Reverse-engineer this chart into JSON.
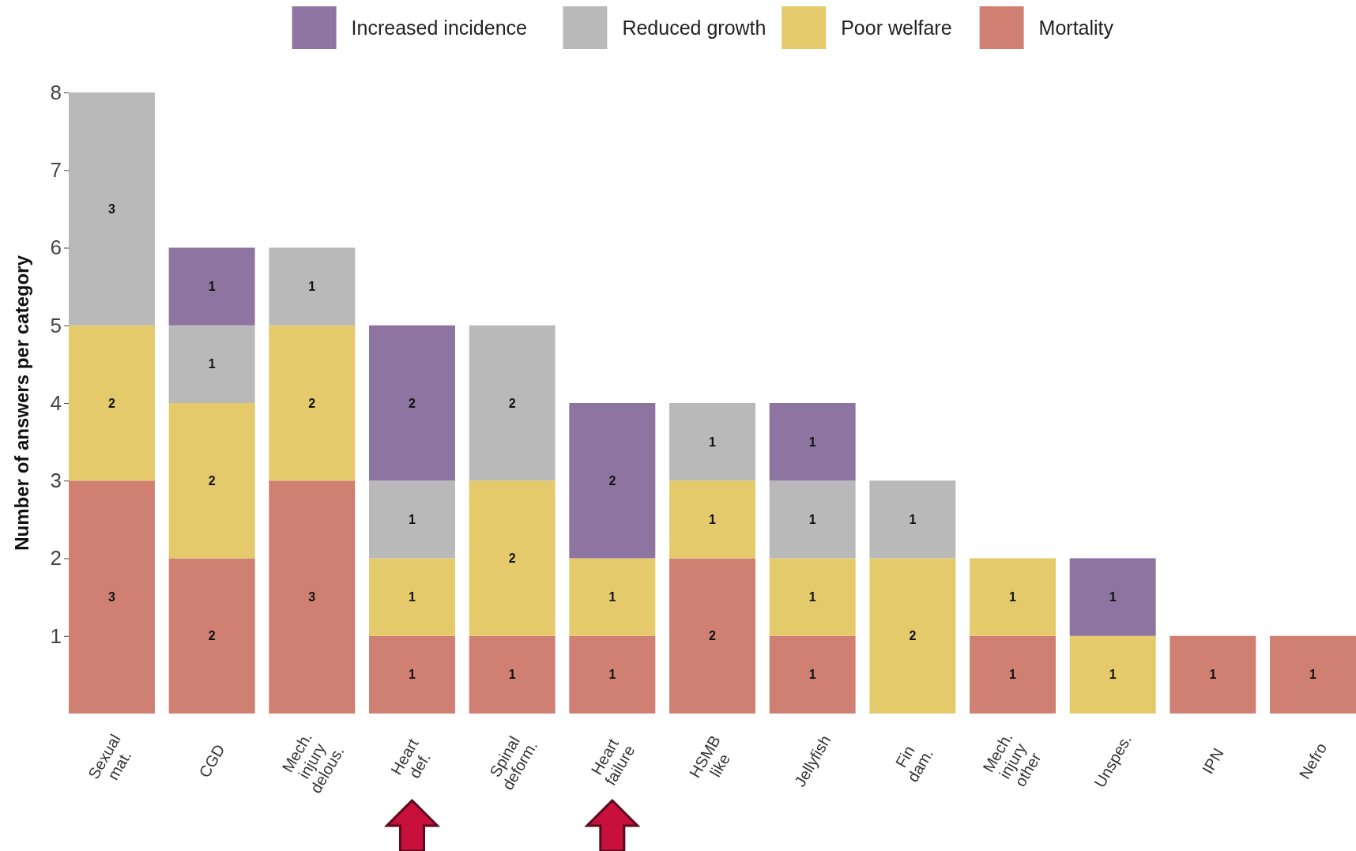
{
  "chart_data": {
    "type": "bar",
    "stacked": true,
    "ylabel": "Number of answers per category",
    "categories": [
      "Sexual\nmat.",
      "CGD",
      "Mech.\ninjury\ndelous.",
      "Heart\ndef.",
      "Spinal\ndeform.",
      "Heart\nfailure",
      "HSMB\nlike",
      "Jellyfish",
      "Fin\ndam.",
      "Mech.\ninjury\nother",
      "Unspes.",
      "IPN",
      "Nefro"
    ],
    "series": [
      {
        "name": "Mortality",
        "color": "#d08073",
        "values": [
          3,
          2,
          3,
          1,
          1,
          1,
          2,
          1,
          null,
          1,
          null,
          1,
          1
        ]
      },
      {
        "name": "Poor welfare",
        "color": "#e4ca6a",
        "values": [
          2,
          2,
          2,
          1,
          2,
          1,
          1,
          1,
          2,
          1,
          1,
          null,
          null
        ]
      },
      {
        "name": "Reduced growth",
        "color": "#b9b9b9",
        "values": [
          3,
          1,
          1,
          1,
          2,
          null,
          1,
          1,
          1,
          null,
          null,
          null,
          null
        ]
      },
      {
        "name": "Increased incidence",
        "color": "#8e74a0",
        "values": [
          null,
          1,
          null,
          2,
          null,
          2,
          null,
          1,
          null,
          null,
          1,
          null,
          null
        ]
      }
    ],
    "ylim": [
      0,
      8
    ],
    "yticks": [
      1,
      2,
      3,
      4,
      5,
      6,
      7,
      8
    ],
    "grid": false,
    "legend": "top",
    "data_labels": true
  }
}
